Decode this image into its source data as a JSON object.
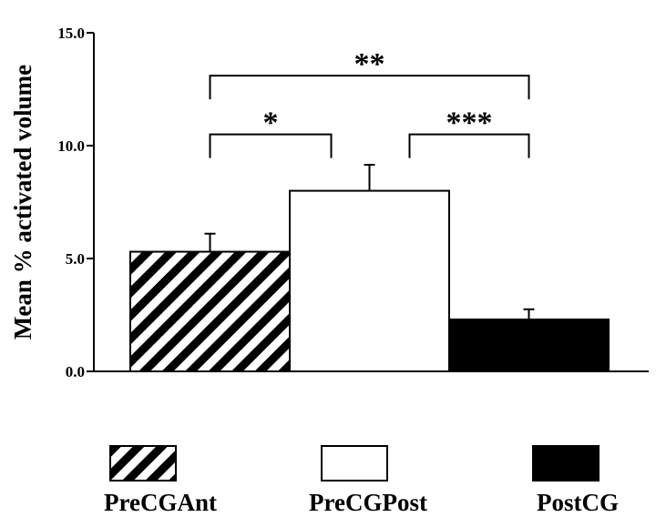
{
  "chart_data": {
    "type": "bar",
    "ylabel": "Mean % activated volume",
    "ylim": [
      0,
      15
    ],
    "yticks": [
      "0.0",
      "5.0",
      "10.0",
      "15.0"
    ],
    "categories": [
      "PreCGAnt",
      "PreCGPost",
      "PostCG"
    ],
    "values": [
      5.3,
      8.0,
      2.3
    ],
    "errors": [
      0.8,
      1.15,
      0.45
    ],
    "fills": [
      "hatched",
      "white",
      "black"
    ],
    "brackets": [
      {
        "from": "PreCGAnt",
        "to": "PreCGPost",
        "label": "*",
        "y": 10.5
      },
      {
        "from": "PreCGPost",
        "to": "PostCG",
        "label": "***",
        "y": 10.5
      },
      {
        "from": "PreCGAnt",
        "to": "PostCG",
        "label": "**",
        "y": 13.1
      }
    ],
    "legend": [
      "PreCGAnt",
      "PreCGPost",
      "PostCG"
    ],
    "legend_position": "bottom",
    "grid": false,
    "colors": {
      "ink": "#000000",
      "paper": "#ffffff"
    }
  }
}
